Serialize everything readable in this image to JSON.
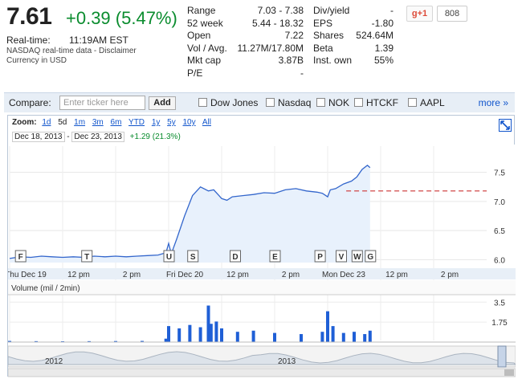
{
  "quote": {
    "price": "7.61",
    "change": "+0.39 (5.47%)",
    "realtime_label": "Real-time:",
    "realtime_time": "11:19AM EST",
    "data_note": "NASDAQ real-time data - Disclaimer",
    "currency": "Currency in USD"
  },
  "stats_left": [
    {
      "label": "Range",
      "value": "7.03 - 7.38"
    },
    {
      "label": "52 week",
      "value": "5.44 - 18.32"
    },
    {
      "label": "Open",
      "value": "7.22"
    },
    {
      "label": "Vol / Avg.",
      "value": "11.27M/17.80M"
    },
    {
      "label": "Mkt cap",
      "value": "3.87B"
    },
    {
      "label": "P/E",
      "value": "-"
    }
  ],
  "stats_right": [
    {
      "label": "Div/yield",
      "value": "-"
    },
    {
      "label": "EPS",
      "value": "-1.80"
    },
    {
      "label": "Shares",
      "value": "524.64M"
    },
    {
      "label": "Beta",
      "value": "1.39"
    },
    {
      "label": "Inst. own",
      "value": "55%"
    }
  ],
  "social": {
    "plus_label": "g+1",
    "count": "808"
  },
  "compare": {
    "label": "Compare:",
    "placeholder": "Enter ticker here",
    "add_label": "Add",
    "options": [
      "Dow Jones",
      "Nasdaq",
      "NOK",
      "HTCKF",
      "AAPL"
    ],
    "more_label": "more »"
  },
  "zoom": {
    "label": "Zoom:",
    "items": [
      "1d",
      "5d",
      "1m",
      "3m",
      "6m",
      "YTD",
      "1y",
      "5y",
      "10y",
      "All"
    ],
    "selected": "5d"
  },
  "date_range": {
    "from": "Dec 18, 2013",
    "to": "Dec 23, 2013",
    "change": "+1.29 (21.3%)"
  },
  "volume_label": "Volume (mil / 2min)",
  "nav_labels": [
    "2012",
    "2013"
  ],
  "colors": {
    "line": "#3366cc",
    "fill": "#e8f1fc",
    "up": "#0a8c2e",
    "ref": "#cc3333",
    "volume": "#1f5fd6"
  },
  "chart_data": {
    "type": "line",
    "y_ticks": [
      6.0,
      6.5,
      7.0,
      7.5
    ],
    "ylim": [
      5.95,
      7.95
    ],
    "previous_close_ref": 7.18,
    "x_labels": [
      "Thu Dec 19",
      "12 pm",
      "2 pm",
      "Fri Dec 20",
      "12 pm",
      "2 pm",
      "Mon Dec 23",
      "12 pm",
      "2 pm"
    ],
    "x_ticks": [
      0.0,
      1.0,
      2.0,
      3.0,
      4.0,
      5.0,
      6.0,
      7.0,
      8.0
    ],
    "series": [
      {
        "x": [
          0.0,
          0.2,
          0.4,
          0.6,
          0.8,
          1.0,
          1.2,
          1.4,
          1.6,
          1.8,
          2.0,
          2.2,
          2.4,
          2.6,
          2.8,
          2.95,
          3.0,
          3.05,
          3.15,
          3.3,
          3.45,
          3.6,
          3.75,
          3.85,
          3.95,
          4.0,
          4.1,
          4.2,
          4.4,
          4.6,
          4.8,
          5.0,
          5.2,
          5.4,
          5.6,
          5.8,
          5.9,
          6.0,
          6.05,
          6.15,
          6.3,
          6.45,
          6.55,
          6.65,
          6.75,
          6.8
        ],
        "y": [
          6.02,
          6.05,
          6.04,
          6.06,
          6.05,
          6.04,
          6.05,
          6.04,
          6.06,
          6.05,
          6.06,
          6.05,
          6.06,
          6.07,
          6.08,
          6.12,
          6.28,
          6.1,
          6.35,
          6.75,
          7.1,
          7.25,
          7.18,
          7.2,
          7.1,
          7.05,
          7.02,
          7.08,
          7.1,
          7.12,
          7.15,
          7.14,
          7.2,
          7.22,
          7.18,
          7.16,
          7.14,
          7.08,
          7.2,
          7.22,
          7.3,
          7.35,
          7.42,
          7.55,
          7.62,
          7.58
        ]
      }
    ],
    "events": [
      "F",
      "T",
      "U",
      "S",
      "D",
      "E",
      "P",
      "V",
      "W",
      "G"
    ],
    "event_x": [
      0.2,
      1.45,
      3.0,
      3.45,
      4.25,
      5.0,
      5.85,
      6.25,
      6.55,
      6.8
    ],
    "volume": {
      "y_ticks": [
        1.75,
        3.5
      ],
      "ylim": [
        0,
        3.8
      ],
      "x": [
        0.0,
        0.5,
        1.0,
        1.5,
        2.0,
        2.5,
        2.95,
        3.0,
        3.2,
        3.4,
        3.6,
        3.75,
        3.8,
        3.9,
        4.0,
        4.3,
        4.6,
        5.0,
        5.5,
        5.9,
        6.0,
        6.1,
        6.3,
        6.5,
        6.7,
        6.8
      ],
      "values": [
        0.1,
        0.08,
        0.07,
        0.08,
        0.09,
        0.1,
        0.3,
        1.4,
        1.2,
        1.5,
        1.3,
        3.2,
        1.6,
        1.8,
        1.2,
        0.9,
        1.0,
        0.8,
        0.7,
        0.9,
        2.7,
        1.4,
        0.8,
        0.9,
        0.7,
        1.0
      ]
    }
  }
}
